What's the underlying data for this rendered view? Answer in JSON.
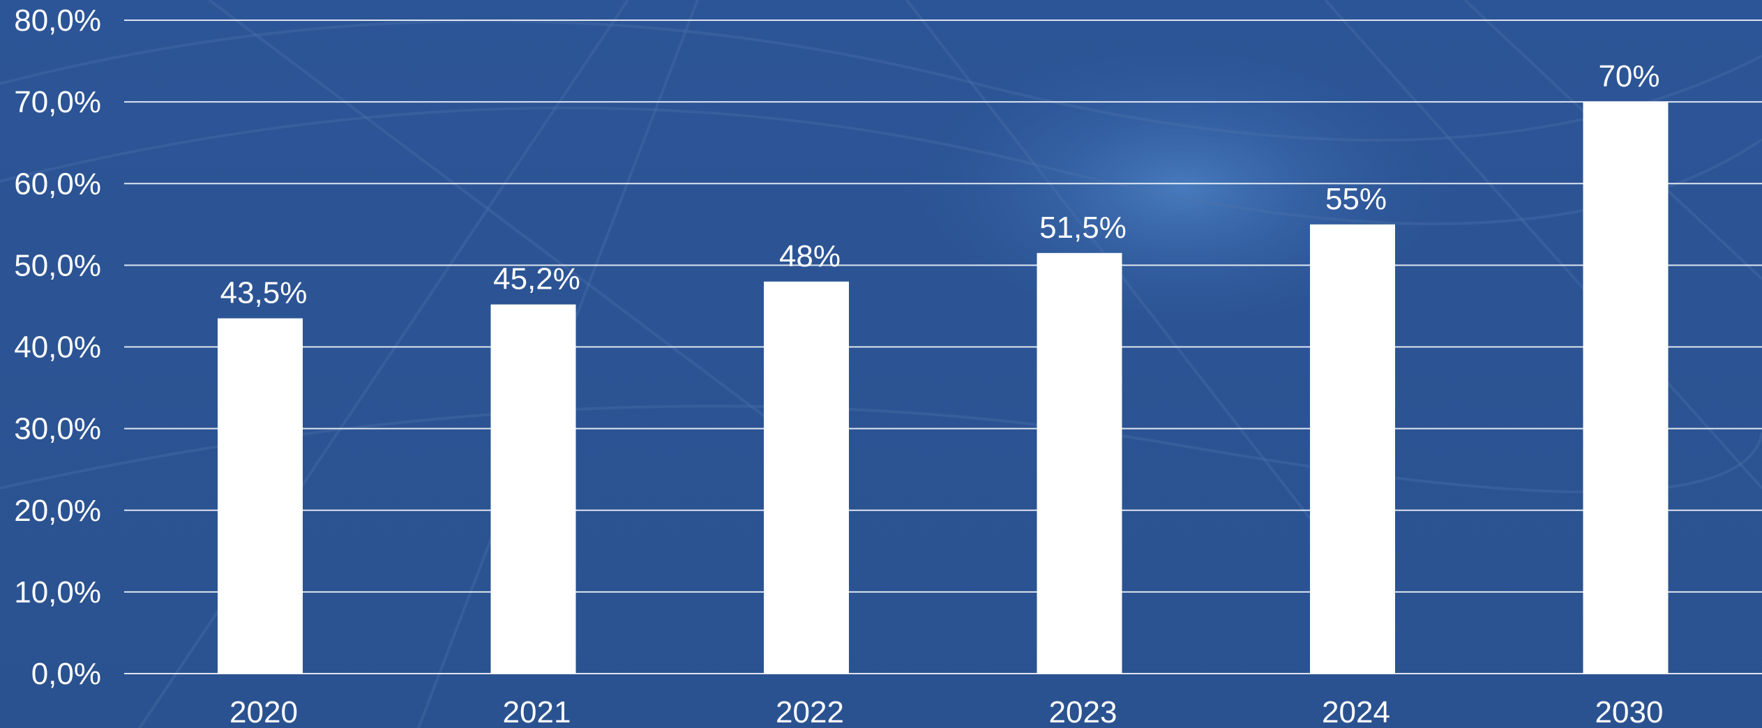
{
  "chart_data": {
    "type": "bar",
    "categories": [
      "2020",
      "2021",
      "2022",
      "2023",
      "2024",
      "2030"
    ],
    "values": [
      43.5,
      45.2,
      48,
      51.5,
      55,
      70
    ],
    "data_labels": [
      "43,5%",
      "45,2%",
      "48%",
      "51,5%",
      "55%",
      "70%"
    ],
    "ylim": [
      0,
      80
    ],
    "y_ticks": [
      0,
      10,
      20,
      30,
      40,
      50,
      60,
      70,
      80
    ],
    "y_tick_labels": [
      "0,0%",
      "10,0%",
      "20,0%",
      "30,0%",
      "40,0%",
      "50,0%",
      "60,0%",
      "70,0%",
      "80,0%"
    ],
    "grid": true,
    "legend": "none",
    "colors": {
      "background": "#2f5a9c",
      "bars": "#ffffff",
      "gridlines": "#ffffff",
      "text": "#ffffff"
    }
  }
}
